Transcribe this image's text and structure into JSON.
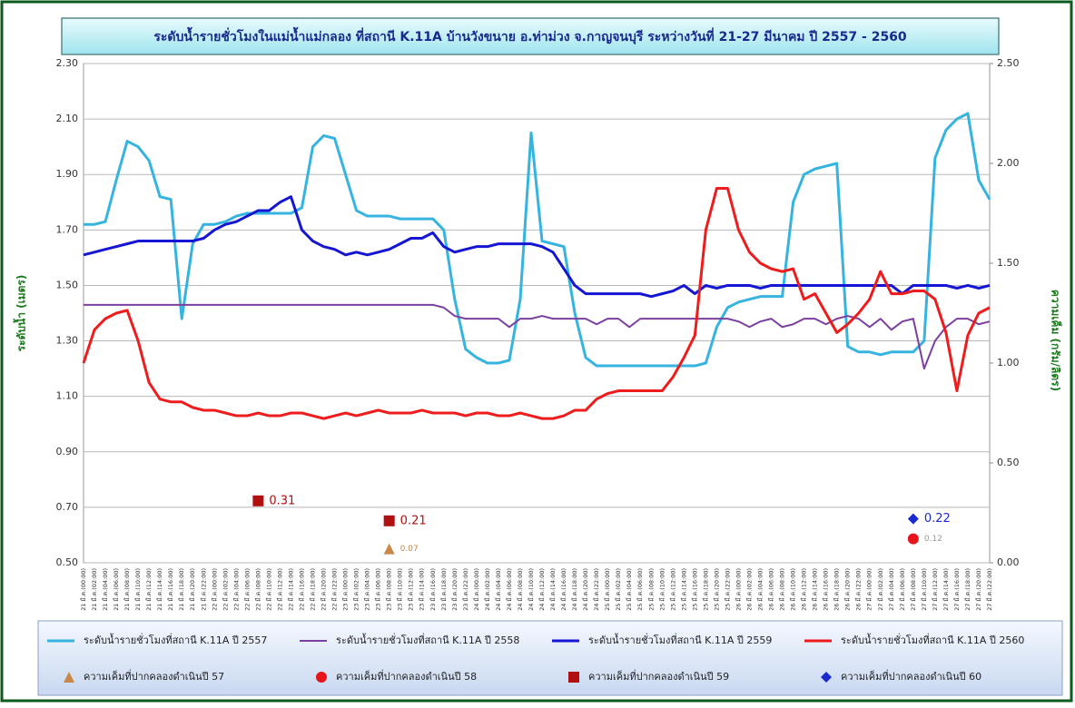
{
  "chart_data": {
    "type": "line",
    "title": "ระดับน้ำรายชั่วโมงในแม่น้ำแม่กลอง  ที่สถานี K.11A บ้านวังขนาย อ.ท่าม่วง จ.กาญจนบุรี ระหว่างวันที่ 21-27 มีนาคม ปี 2557 - 2560",
    "ylabel": "ระดับน้ำ (เมตร)",
    "y2label": "ความเค็ม (กรัม/ลิตร)",
    "categories": [
      "21 มี.ค.(00:00)",
      "21 มี.ค.(02:00)",
      "21 มี.ค.(04:00)",
      "21 มี.ค.(06:00)",
      "21 มี.ค.(08:00)",
      "21 มี.ค.(10:00)",
      "21 มี.ค.(12:00)",
      "21 มี.ค.(14:00)",
      "21 มี.ค.(16:00)",
      "21 มี.ค.(18:00)",
      "21 มี.ค.(20:00)",
      "21 มี.ค.(22:00)",
      "22 มี.ค.(00:00)",
      "22 มี.ค.(02:00)",
      "22 มี.ค.(04:00)",
      "22 มี.ค.(06:00)",
      "22 มี.ค.(08:00)",
      "22 มี.ค.(10:00)",
      "22 มี.ค.(12:00)",
      "22 มี.ค.(14:00)",
      "22 มี.ค.(16:00)",
      "22 มี.ค.(18:00)",
      "22 มี.ค.(20:00)",
      "22 มี.ค.(22:00)",
      "23 มี.ค.(00:00)",
      "23 มี.ค.(02:00)",
      "23 มี.ค.(04:00)",
      "23 มี.ค.(06:00)",
      "23 มี.ค.(08:00)",
      "23 มี.ค.(10:00)",
      "23 มี.ค.(12:00)",
      "23 มี.ค.(14:00)",
      "23 มี.ค.(16:00)",
      "23 มี.ค.(18:00)",
      "23 มี.ค.(20:00)",
      "23 มี.ค.(22:00)",
      "24 มี.ค.(00:00)",
      "24 มี.ค.(02:00)",
      "24 มี.ค.(04:00)",
      "24 มี.ค.(06:00)",
      "24 มี.ค.(08:00)",
      "24 มี.ค.(10:00)",
      "24 มี.ค.(12:00)",
      "24 มี.ค.(14:00)",
      "24 มี.ค.(16:00)",
      "24 มี.ค.(18:00)",
      "24 มี.ค.(20:00)",
      "24 มี.ค.(22:00)",
      "25 มี.ค.(00:00)",
      "25 มี.ค.(02:00)",
      "25 มี.ค.(04:00)",
      "25 มี.ค.(06:00)",
      "25 มี.ค.(08:00)",
      "25 มี.ค.(10:00)",
      "25 มี.ค.(12:00)",
      "25 มี.ค.(14:00)",
      "25 มี.ค.(16:00)",
      "25 มี.ค.(18:00)",
      "25 มี.ค.(20:00)",
      "25 มี.ค.(22:00)",
      "26 มี.ค.(00:00)",
      "26 มี.ค.(02:00)",
      "26 มี.ค.(04:00)",
      "26 มี.ค.(06:00)",
      "26 มี.ค.(08:00)",
      "26 มี.ค.(10:00)",
      "26 มี.ค.(12:00)",
      "26 มี.ค.(14:00)",
      "26 มี.ค.(16:00)",
      "26 มี.ค.(18:00)",
      "26 มี.ค.(20:00)",
      "26 มี.ค.(22:00)",
      "27 มี.ค.(00:00)",
      "27 มี.ค.(02:00)",
      "27 มี.ค.(04:00)",
      "27 มี.ค.(06:00)",
      "27 มี.ค.(08:00)",
      "27 มี.ค.(10:00)",
      "27 มี.ค.(12:00)",
      "27 มี.ค.(14:00)",
      "27 มี.ค.(16:00)",
      "27 มี.ค.(18:00)",
      "27 มี.ค.(20:00)",
      "27 มี.ค.(22:00)"
    ],
    "ylim": [
      0.5,
      2.3
    ],
    "yticks": [
      {
        "value": 0.5,
        "label": "0.50"
      },
      {
        "value": 0.7,
        "label": "0.70"
      },
      {
        "value": 0.9,
        "label": "0.90"
      },
      {
        "value": 1.1,
        "label": "1.10"
      },
      {
        "value": 1.3,
        "label": "1.30"
      },
      {
        "value": 1.5,
        "label": "1.50"
      },
      {
        "value": 1.7,
        "label": "1.70"
      },
      {
        "value": 1.9,
        "label": "1.90"
      },
      {
        "value": 2.1,
        "label": "2.10"
      },
      {
        "value": 2.3,
        "label": "2.30"
      }
    ],
    "y2lim": [
      0,
      2.5
    ],
    "y2ticks": [
      {
        "value": 0,
        "label": "0.00"
      },
      {
        "value": 0.5,
        "label": "0.50"
      },
      {
        "value": 1,
        "label": "1.00"
      },
      {
        "value": 1.5,
        "label": "1.50"
      },
      {
        "value": 2,
        "label": "2.00"
      },
      {
        "value": 2.5,
        "label": "2.50"
      }
    ],
    "grid": true,
    "series": [
      {
        "name": "ระดับน้ำรายชั่วโมงที่สถานี K.11A ปี 2557",
        "type": "line",
        "color": "#35b4e0",
        "values": [
          1.72,
          1.72,
          1.73,
          1.88,
          2.02,
          2.0,
          1.95,
          1.82,
          1.81,
          1.38,
          1.65,
          1.72,
          1.72,
          1.73,
          1.75,
          1.76,
          1.76,
          1.76,
          1.76,
          1.76,
          1.78,
          2.0,
          2.04,
          2.03,
          1.9,
          1.77,
          1.75,
          1.75,
          1.75,
          1.74,
          1.74,
          1.74,
          1.74,
          1.7,
          1.45,
          1.27,
          1.24,
          1.22,
          1.22,
          1.23,
          1.45,
          2.05,
          1.66,
          1.65,
          1.64,
          1.4,
          1.24,
          1.21,
          1.21,
          1.21,
          1.21,
          1.21,
          1.21,
          1.21,
          1.21,
          1.21,
          1.21,
          1.22,
          1.35,
          1.42,
          1.44,
          1.45,
          1.46,
          1.46,
          1.46,
          1.8,
          1.9,
          1.92,
          1.93,
          1.94,
          1.28,
          1.26,
          1.26,
          1.25,
          1.26,
          1.26,
          1.26,
          1.3,
          1.96,
          2.06,
          2.1,
          2.12,
          1.88,
          1.81
        ]
      },
      {
        "name": "ระดับน้ำรายชั่วโมงที่สถานี K.11A ปี 2558",
        "type": "line",
        "color": "#7b3fa0",
        "values": [
          1.43,
          1.43,
          1.43,
          1.43,
          1.43,
          1.43,
          1.43,
          1.43,
          1.43,
          1.43,
          1.43,
          1.43,
          1.43,
          1.43,
          1.43,
          1.43,
          1.43,
          1.43,
          1.43,
          1.43,
          1.43,
          1.43,
          1.43,
          1.43,
          1.43,
          1.43,
          1.43,
          1.43,
          1.43,
          1.43,
          1.43,
          1.43,
          1.43,
          1.42,
          1.39,
          1.38,
          1.38,
          1.38,
          1.38,
          1.35,
          1.38,
          1.38,
          1.39,
          1.38,
          1.38,
          1.38,
          1.38,
          1.36,
          1.38,
          1.38,
          1.35,
          1.38,
          1.38,
          1.38,
          1.38,
          1.38,
          1.38,
          1.38,
          1.38,
          1.38,
          1.37,
          1.35,
          1.37,
          1.38,
          1.35,
          1.36,
          1.38,
          1.38,
          1.36,
          1.38,
          1.39,
          1.38,
          1.35,
          1.38,
          1.34,
          1.37,
          1.38,
          1.2,
          1.3,
          1.35,
          1.38,
          1.38,
          1.36,
          1.37
        ]
      },
      {
        "name": "ระดับน้ำรายชั่วโมงที่สถานี K.11A ปี 2559",
        "type": "line",
        "color": "#1515d4",
        "values": [
          1.61,
          1.62,
          1.63,
          1.64,
          1.65,
          1.66,
          1.66,
          1.66,
          1.66,
          1.66,
          1.66,
          1.67,
          1.7,
          1.72,
          1.73,
          1.75,
          1.77,
          1.77,
          1.8,
          1.82,
          1.7,
          1.66,
          1.64,
          1.63,
          1.61,
          1.62,
          1.61,
          1.62,
          1.63,
          1.65,
          1.67,
          1.67,
          1.69,
          1.64,
          1.62,
          1.63,
          1.64,
          1.64,
          1.65,
          1.65,
          1.65,
          1.65,
          1.64,
          1.62,
          1.56,
          1.5,
          1.47,
          1.47,
          1.47,
          1.47,
          1.47,
          1.47,
          1.46,
          1.47,
          1.48,
          1.5,
          1.47,
          1.5,
          1.49,
          1.5,
          1.5,
          1.5,
          1.49,
          1.5,
          1.5,
          1.5,
          1.5,
          1.5,
          1.5,
          1.5,
          1.5,
          1.5,
          1.5,
          1.5,
          1.5,
          1.47,
          1.5,
          1.5,
          1.5,
          1.5,
          1.49,
          1.5,
          1.49,
          1.5
        ]
      },
      {
        "name": "ระดับน้ำรายชั่วโมงที่สถานี K.11A ปี 2560",
        "type": "line",
        "color": "#ee1c1c",
        "values": [
          1.22,
          1.34,
          1.38,
          1.4,
          1.41,
          1.3,
          1.15,
          1.09,
          1.08,
          1.08,
          1.06,
          1.05,
          1.05,
          1.04,
          1.03,
          1.03,
          1.04,
          1.03,
          1.03,
          1.04,
          1.04,
          1.03,
          1.02,
          1.03,
          1.04,
          1.03,
          1.04,
          1.05,
          1.04,
          1.04,
          1.04,
          1.05,
          1.04,
          1.04,
          1.04,
          1.03,
          1.04,
          1.04,
          1.03,
          1.03,
          1.04,
          1.03,
          1.02,
          1.02,
          1.03,
          1.05,
          1.05,
          1.09,
          1.11,
          1.12,
          1.12,
          1.12,
          1.12,
          1.12,
          1.17,
          1.24,
          1.32,
          1.7,
          1.85,
          1.85,
          1.7,
          1.62,
          1.58,
          1.56,
          1.55,
          1.56,
          1.45,
          1.47,
          1.4,
          1.33,
          1.36,
          1.4,
          1.45,
          1.55,
          1.47,
          1.47,
          1.48,
          1.48,
          1.45,
          1.33,
          1.12,
          1.32,
          1.4,
          1.42
        ]
      },
      {
        "name": "ความเค็มที่ปากคลองดำเนินปี 57",
        "type": "scatter",
        "marker": "triangle",
        "axis": "y2",
        "color": "#c8884a",
        "categories": [
          "23 มี.ค.(08:00)"
        ],
        "values": [
          0.07
        ]
      },
      {
        "name": "ความเค็มที่ปากคลองดำเนินปี 58",
        "type": "scatter",
        "marker": "circle",
        "axis": "y2",
        "color": "#e8141c",
        "categories": [
          "27 มี.ค.(08:00)"
        ],
        "values": [
          0.12
        ]
      },
      {
        "name": "ความเค็มที่ปากคลองดำเนินปี 59",
        "type": "scatter",
        "marker": "square",
        "axis": "y2",
        "color": "#b01010",
        "categories": [
          "22 มี.ค.(08:00)",
          "23 มี.ค.(08:00)"
        ],
        "values": [
          0.31,
          0.21
        ]
      },
      {
        "name": "ความเค็มที่ปากคลองดำเนินปี 60",
        "type": "scatter",
        "marker": "diamond",
        "axis": "y2",
        "color": "#1a2ad0",
        "categories": [
          "27 มี.ค.(08:00)"
        ],
        "values": [
          0.22
        ]
      }
    ]
  }
}
